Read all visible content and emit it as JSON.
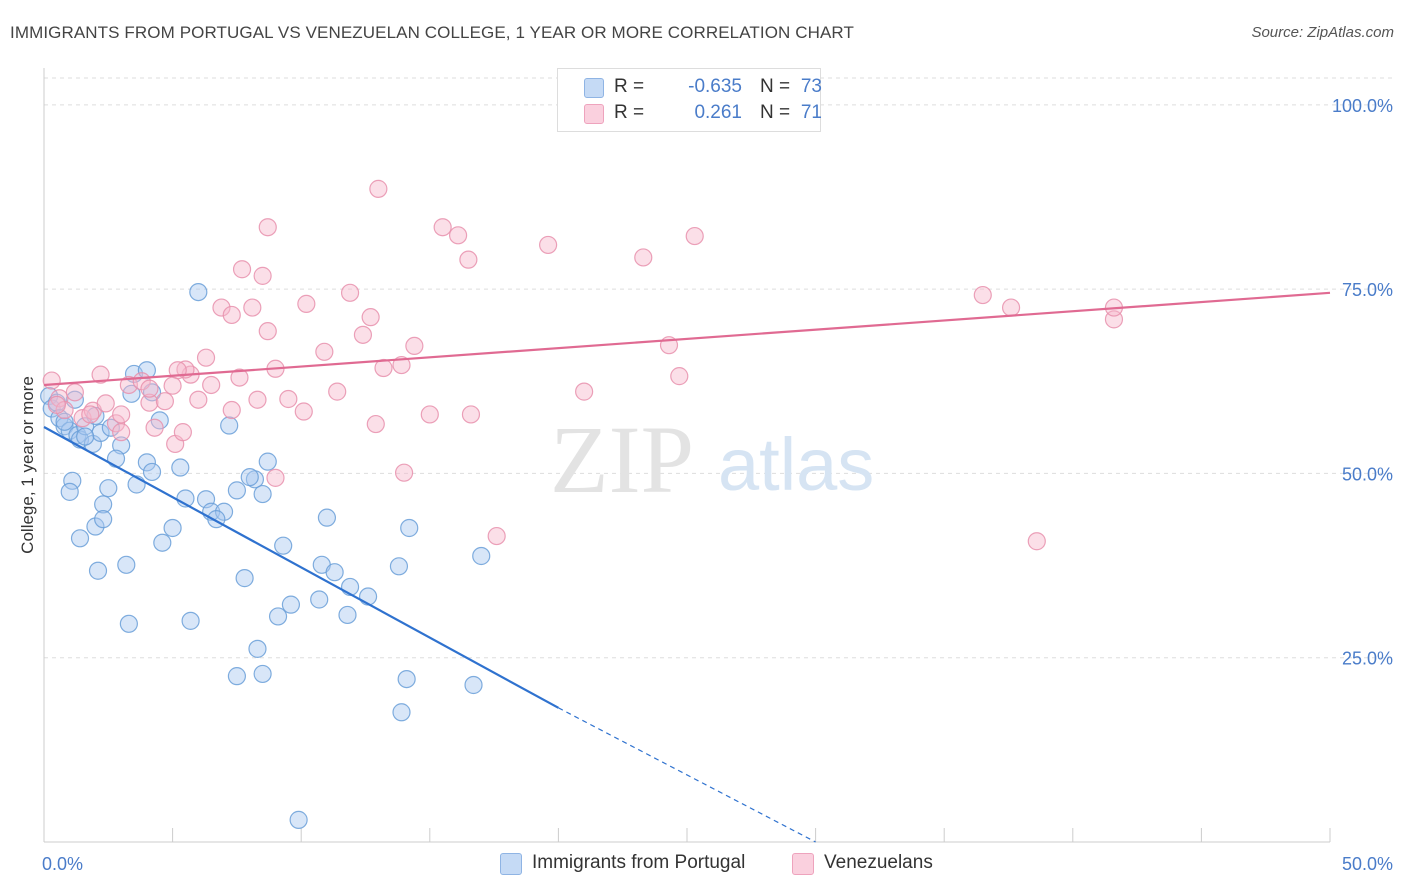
{
  "header": {
    "title": "IMMIGRANTS FROM PORTUGAL VS VENEZUELAN COLLEGE, 1 YEAR OR MORE CORRELATION CHART",
    "source": "Source: ZipAtlas.com"
  },
  "watermark": {
    "part1": "ZIP",
    "part2": "atlas"
  },
  "legend": {
    "r_label": "R =",
    "n_label": "N =",
    "rows": [
      {
        "r": "-0.635",
        "n": "73",
        "color": "#a9c8f0"
      },
      {
        "r": "0.261",
        "n": "71",
        "color": "#f6b8cc"
      }
    ]
  },
  "colors": {
    "blue_fill": "#a9c8f0",
    "blue_stroke": "#6a9fd8",
    "blue_line": "#2f72cf",
    "pink_fill": "#f6b8cc",
    "pink_stroke": "#e890ad",
    "pink_line": "#e06a92",
    "tick_text": "#4a7cc9",
    "grid": "#dddddd"
  },
  "chart_data": {
    "type": "scatter",
    "title": "IMMIGRANTS FROM PORTUGAL VS VENEZUELAN COLLEGE, 1 YEAR OR MORE CORRELATION CHART",
    "xlabel": "",
    "ylabel": "College, 1 year or more",
    "xlim": [
      0,
      50
    ],
    "ylim": [
      0,
      105
    ],
    "x_tick_labels": [
      "0.0%",
      "50.0%"
    ],
    "y_ticks": [
      {
        "value": 25,
        "label": "25.0%"
      },
      {
        "value": 50,
        "label": "50.0%"
      },
      {
        "value": 75,
        "label": "75.0%"
      },
      {
        "value": 100,
        "label": "100.0%"
      }
    ],
    "grid": true,
    "legend_position": "top-center",
    "series": [
      {
        "name": "Immigrants from Portugal",
        "color": "#a9c8f0",
        "points": [
          [
            0.2,
            60.5
          ],
          [
            0.3,
            58.8
          ],
          [
            0.5,
            59.6
          ],
          [
            0.6,
            57.5
          ],
          [
            0.8,
            56.4
          ],
          [
            1.0,
            55.8
          ],
          [
            1.2,
            60.0
          ],
          [
            1.3,
            55.2
          ],
          [
            1.4,
            54.6
          ],
          [
            1.6,
            56.4
          ],
          [
            1.9,
            54.0
          ],
          [
            2.2,
            55.5
          ],
          [
            2.6,
            56.2
          ],
          [
            3.0,
            53.8
          ],
          [
            3.5,
            63.5
          ],
          [
            4.0,
            64.0
          ],
          [
            3.4,
            60.8
          ],
          [
            4.2,
            61.0
          ],
          [
            4.5,
            57.2
          ],
          [
            2.8,
            52.0
          ],
          [
            4.0,
            51.5
          ],
          [
            1.1,
            49.0
          ],
          [
            1.0,
            47.5
          ],
          [
            4.2,
            50.2
          ],
          [
            3.6,
            48.5
          ],
          [
            2.5,
            48.0
          ],
          [
            2.3,
            45.8
          ],
          [
            5.3,
            50.8
          ],
          [
            1.4,
            41.2
          ],
          [
            2.0,
            42.8
          ],
          [
            2.3,
            43.8
          ],
          [
            5.0,
            42.6
          ],
          [
            4.6,
            40.6
          ],
          [
            6.3,
            46.5
          ],
          [
            6.5,
            44.8
          ],
          [
            7.0,
            44.8
          ],
          [
            7.2,
            56.5
          ],
          [
            7.5,
            47.7
          ],
          [
            8.2,
            49.2
          ],
          [
            8.5,
            47.2
          ],
          [
            8.7,
            51.6
          ],
          [
            6.7,
            43.8
          ],
          [
            2.1,
            36.8
          ],
          [
            3.2,
            37.6
          ],
          [
            7.8,
            35.8
          ],
          [
            9.3,
            40.2
          ],
          [
            11.0,
            44.0
          ],
          [
            10.8,
            37.6
          ],
          [
            11.3,
            36.6
          ],
          [
            11.9,
            34.6
          ],
          [
            12.6,
            33.3
          ],
          [
            14.2,
            42.6
          ],
          [
            13.8,
            37.4
          ],
          [
            17.0,
            38.8
          ],
          [
            9.6,
            32.2
          ],
          [
            9.1,
            30.6
          ],
          [
            10.7,
            32.9
          ],
          [
            11.8,
            30.8
          ],
          [
            3.3,
            29.6
          ],
          [
            5.7,
            30.0
          ],
          [
            8.3,
            26.2
          ],
          [
            7.5,
            22.5
          ],
          [
            8.5,
            22.8
          ],
          [
            14.1,
            22.1
          ],
          [
            16.7,
            21.3
          ],
          [
            13.9,
            17.6
          ],
          [
            8.0,
            49.5
          ],
          [
            5.5,
            46.6
          ],
          [
            6.0,
            74.6
          ],
          [
            9.9,
            3.0
          ],
          [
            0.8,
            57.0
          ],
          [
            2.0,
            57.8
          ],
          [
            1.6,
            55.0
          ]
        ]
      },
      {
        "name": "Venezuelans",
        "color": "#f6b8cc",
        "points": [
          [
            0.3,
            62.6
          ],
          [
            0.6,
            60.2
          ],
          [
            0.8,
            58.6
          ],
          [
            1.2,
            61.0
          ],
          [
            1.5,
            57.5
          ],
          [
            1.9,
            58.5
          ],
          [
            2.2,
            63.4
          ],
          [
            2.4,
            59.5
          ],
          [
            2.8,
            56.8
          ],
          [
            3.0,
            55.6
          ],
          [
            3.3,
            62.0
          ],
          [
            3.8,
            62.5
          ],
          [
            4.1,
            59.6
          ],
          [
            4.3,
            56.2
          ],
          [
            4.7,
            59.8
          ],
          [
            5.1,
            54.0
          ],
          [
            5.4,
            55.6
          ],
          [
            5.7,
            63.4
          ],
          [
            6.0,
            60.0
          ],
          [
            6.3,
            65.7
          ],
          [
            5.5,
            64.1
          ],
          [
            5.2,
            64.0
          ],
          [
            5.0,
            61.9
          ],
          [
            4.1,
            61.5
          ],
          [
            6.9,
            72.5
          ],
          [
            7.3,
            71.5
          ],
          [
            7.7,
            77.7
          ],
          [
            8.1,
            72.5
          ],
          [
            8.5,
            76.8
          ],
          [
            8.7,
            69.3
          ],
          [
            9.0,
            64.2
          ],
          [
            9.5,
            60.1
          ],
          [
            10.1,
            58.4
          ],
          [
            10.2,
            73.0
          ],
          [
            10.9,
            66.5
          ],
          [
            11.4,
            61.1
          ],
          [
            11.9,
            74.5
          ],
          [
            12.4,
            68.8
          ],
          [
            12.9,
            56.7
          ],
          [
            12.7,
            71.2
          ],
          [
            13.2,
            64.3
          ],
          [
            13.9,
            64.7
          ],
          [
            14.4,
            67.3
          ],
          [
            14.0,
            50.1
          ],
          [
            15.0,
            58.0
          ],
          [
            8.7,
            83.4
          ],
          [
            13.0,
            88.6
          ],
          [
            15.5,
            83.4
          ],
          [
            16.1,
            82.3
          ],
          [
            16.5,
            79.0
          ],
          [
            19.6,
            81.0
          ],
          [
            23.3,
            79.3
          ],
          [
            21.0,
            61.1
          ],
          [
            16.6,
            58.0
          ],
          [
            17.6,
            41.5
          ],
          [
            24.3,
            67.4
          ],
          [
            24.7,
            63.2
          ],
          [
            25.3,
            82.2
          ],
          [
            36.5,
            74.2
          ],
          [
            37.6,
            72.5
          ],
          [
            41.6,
            70.9
          ],
          [
            41.6,
            72.5
          ],
          [
            38.6,
            40.8
          ],
          [
            9.0,
            49.4
          ],
          [
            7.3,
            58.6
          ],
          [
            8.3,
            60.0
          ],
          [
            6.5,
            62.0
          ],
          [
            3.0,
            58.0
          ],
          [
            1.8,
            58.0
          ],
          [
            0.5,
            59.3
          ],
          [
            7.6,
            63.0
          ]
        ]
      }
    ],
    "trend_lines": [
      {
        "series": "Immigrants from Portugal",
        "from": [
          0,
          56.3
        ],
        "to": [
          20,
          18.2
        ],
        "dashed_to": [
          30,
          -0.8
        ]
      },
      {
        "series": "Venezuelans",
        "from": [
          0,
          62.0
        ],
        "to": [
          50,
          74.5
        ]
      }
    ]
  },
  "bottom_legend": [
    {
      "label": "Immigrants from Portugal",
      "color": "#a9c8f0"
    },
    {
      "label": "Venezuelans",
      "color": "#f6b8cc"
    }
  ]
}
